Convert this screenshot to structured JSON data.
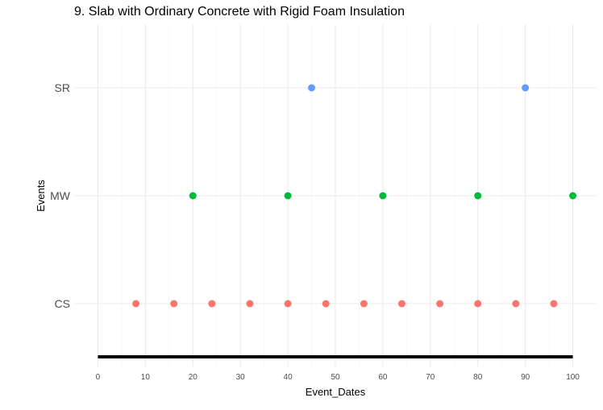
{
  "chart_data": {
    "type": "scatter",
    "title": "9. Slab with Ordinary Concrete with Rigid Foam Insulation",
    "xlabel": "Event_Dates",
    "ylabel": "Events",
    "xlim": [
      -5,
      105
    ],
    "x_ticks": [
      0,
      10,
      20,
      30,
      40,
      50,
      60,
      70,
      80,
      90,
      100
    ],
    "x_tick_labels": [
      "0",
      "10",
      "20",
      "30",
      "40",
      "50",
      "60",
      "70",
      "80",
      "90",
      "100"
    ],
    "categories": [
      "CS",
      "MW",
      "SR"
    ],
    "grid": true,
    "legend": "none",
    "series": [
      {
        "category": "SR",
        "color": "#619CFF",
        "x": [
          45,
          90
        ]
      },
      {
        "category": "MW",
        "color": "#00BA38",
        "x": [
          20,
          40,
          60,
          80,
          100
        ]
      },
      {
        "category": "CS",
        "color": "#F8766D",
        "x": [
          8,
          16,
          24,
          32,
          40,
          48,
          56,
          64,
          72,
          80,
          88,
          96
        ]
      }
    ],
    "baseline": {
      "x_start": 0,
      "x_end": 100,
      "color": "#000000"
    }
  }
}
